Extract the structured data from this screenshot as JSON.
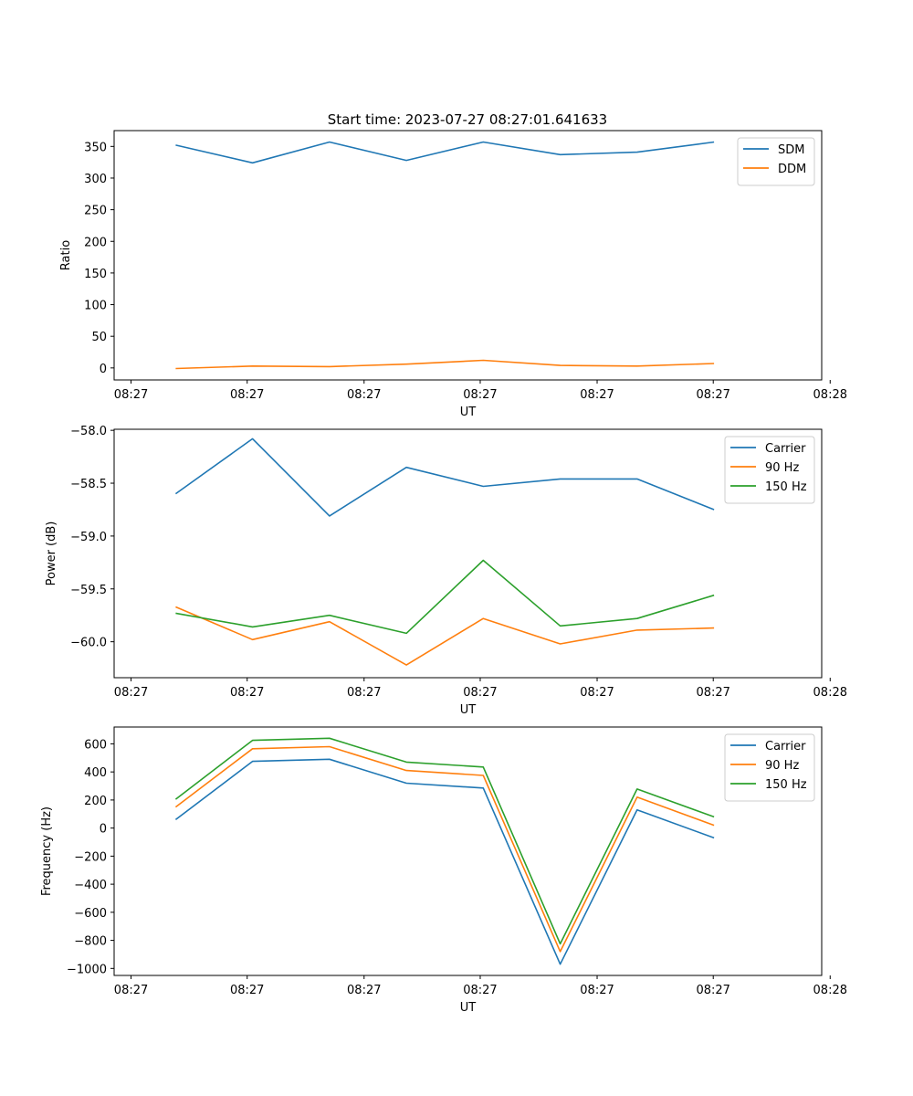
{
  "figure_title": "Start time: 2023-07-27 08:27:01.641633",
  "chart_data": [
    {
      "type": "line",
      "title": "Start time: 2023-07-27 08:27:01.641633",
      "xlabel": "UT",
      "ylabel": "Ratio",
      "x": [
        1,
        2,
        3,
        4,
        5,
        6,
        7,
        8
      ],
      "xlim": [
        0.2,
        9.4
      ],
      "x_ticks": [
        0.42,
        1.93,
        3.45,
        4.96,
        6.48,
        7.99,
        9.51
      ],
      "x_tick_labels": [
        "08:27",
        "08:27",
        "08:27",
        "08:27",
        "08:27",
        "08:27",
        "08:28"
      ],
      "ylim": [
        -19,
        375
      ],
      "y_ticks": [
        0,
        50,
        100,
        150,
        200,
        250,
        300,
        350
      ],
      "y_tick_labels": [
        "0",
        "50",
        "100",
        "150",
        "200",
        "250",
        "300",
        "350"
      ],
      "legend": "upper-right",
      "series": [
        {
          "name": "SDM",
          "color": "#1f77b4",
          "values": [
            352,
            324,
            357,
            328,
            357,
            337,
            341,
            357
          ]
        },
        {
          "name": "DDM",
          "color": "#ff7f0e",
          "values": [
            -1,
            3,
            2,
            6,
            12,
            4,
            3,
            7
          ]
        }
      ]
    },
    {
      "type": "line",
      "title": "",
      "xlabel": "UT",
      "ylabel": "Power (dB)",
      "x": [
        1,
        2,
        3,
        4,
        5,
        6,
        7,
        8
      ],
      "xlim": [
        0.2,
        9.4
      ],
      "x_ticks": [
        0.42,
        1.93,
        3.45,
        4.96,
        6.48,
        7.99,
        9.51
      ],
      "x_tick_labels": [
        "08:27",
        "08:27",
        "08:27",
        "08:27",
        "08:27",
        "08:27",
        "08:28"
      ],
      "ylim": [
        -60.34,
        -57.99
      ],
      "y_ticks": [
        -60.0,
        -59.5,
        -59.0,
        -58.5,
        -58.0
      ],
      "y_tick_labels": [
        "−60.0",
        "−59.5",
        "−59.0",
        "−58.5",
        "−58.0"
      ],
      "legend": "upper-right",
      "series": [
        {
          "name": "Carrier",
          "color": "#1f77b4",
          "values": [
            -58.6,
            -58.08,
            -58.81,
            -58.35,
            -58.53,
            -58.46,
            -58.46,
            -58.75
          ]
        },
        {
          "name": "90 Hz",
          "color": "#ff7f0e",
          "values": [
            -59.67,
            -59.98,
            -59.81,
            -60.22,
            -59.78,
            -60.02,
            -59.89,
            -59.87
          ]
        },
        {
          "name": "150 Hz",
          "color": "#2ca02c",
          "values": [
            -59.73,
            -59.86,
            -59.75,
            -59.92,
            -59.23,
            -59.85,
            -59.78,
            -59.56
          ]
        }
      ]
    },
    {
      "type": "line",
      "title": "",
      "xlabel": "UT",
      "ylabel": "Frequency (Hz)",
      "x": [
        1,
        2,
        3,
        4,
        5,
        6,
        7,
        8
      ],
      "xlim": [
        0.2,
        9.4
      ],
      "x_ticks": [
        0.42,
        1.93,
        3.45,
        4.96,
        6.48,
        7.99,
        9.51
      ],
      "x_tick_labels": [
        "08:27",
        "08:27",
        "08:27",
        "08:27",
        "08:27",
        "08:27",
        "08:28"
      ],
      "ylim": [
        -1050,
        720
      ],
      "y_ticks": [
        -1000,
        -800,
        -600,
        -400,
        -200,
        0,
        200,
        400,
        600
      ],
      "y_tick_labels": [
        "−1000",
        "−800",
        "−600",
        "−400",
        "−200",
        "0",
        "200",
        "400",
        "600"
      ],
      "legend": "upper-right",
      "series": [
        {
          "name": "Carrier",
          "color": "#1f77b4",
          "values": [
            60,
            475,
            490,
            320,
            285,
            -970,
            130,
            -70
          ]
        },
        {
          "name": "90 Hz",
          "color": "#ff7f0e",
          "values": [
            150,
            565,
            580,
            410,
            375,
            -880,
            220,
            20
          ]
        },
        {
          "name": "150 Hz",
          "color": "#2ca02c",
          "values": [
            205,
            625,
            640,
            470,
            435,
            -825,
            278,
            80
          ]
        }
      ]
    }
  ]
}
